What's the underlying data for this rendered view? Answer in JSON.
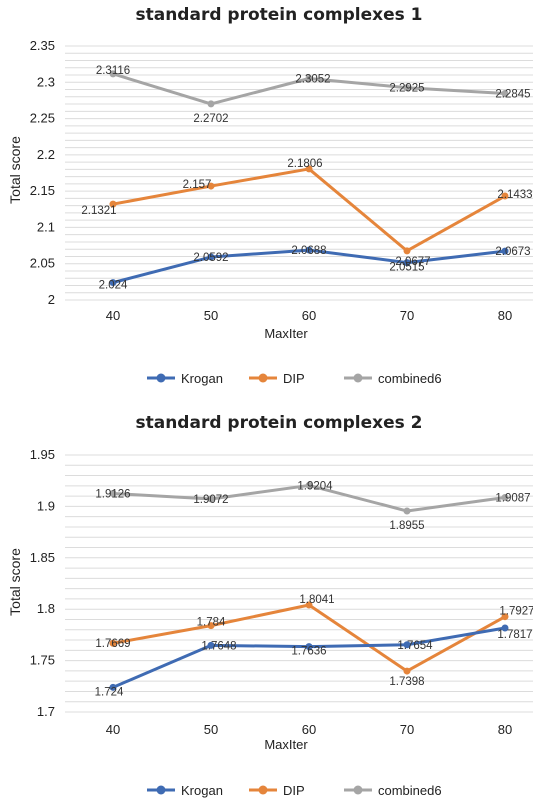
{
  "legend": {
    "entries": [
      "Krogan",
      "DIP",
      "combined6"
    ]
  },
  "colors": {
    "Krogan": "#3f6bb3",
    "DIP": "#e5853b",
    "combined6": "#a5a5a5"
  },
  "chart_data": [
    {
      "type": "line",
      "title": "standard  protein complexes 1",
      "xlabel": "MaxIter",
      "ylabel": "Total score",
      "categories": [
        "40",
        "50",
        "60",
        "70",
        "80"
      ],
      "ylim": [
        2,
        2.35
      ],
      "yticks": [
        "2",
        "2.05",
        "2.1",
        "2.15",
        "2.2",
        "2.25",
        "2.3",
        "2.35"
      ],
      "grid": true,
      "legend_position": "bottom",
      "series": [
        {
          "name": "Krogan",
          "values": [
            2.024,
            2.0592,
            2.0688,
            2.0515,
            2.0673
          ],
          "labels": [
            "2.024",
            "2.0592",
            "2.0688",
            "2.0515",
            "2.0673"
          ]
        },
        {
          "name": "DIP",
          "values": [
            2.1321,
            2.157,
            2.1806,
            2.0677,
            2.1433
          ],
          "labels": [
            "2.1321",
            "2.157",
            "2.1806",
            "2.0677",
            "2.1433"
          ]
        },
        {
          "name": "combined6",
          "values": [
            2.3116,
            2.2702,
            2.3052,
            2.2925,
            2.2845
          ],
          "labels": [
            "2.3116",
            "2.2702",
            "2.3052",
            "2.2925",
            "2.2845"
          ]
        }
      ]
    },
    {
      "type": "line",
      "title": "standard  protein complexes 2",
      "xlabel": "MaxIter",
      "ylabel": "Total score",
      "categories": [
        "40",
        "50",
        "60",
        "70",
        "80"
      ],
      "ylim": [
        1.7,
        1.95
      ],
      "yticks": [
        "1.7",
        "1.75",
        "1.8",
        "1.85",
        "1.9",
        "1.95"
      ],
      "grid": true,
      "legend_position": "bottom",
      "series": [
        {
          "name": "Krogan",
          "values": [
            1.724,
            1.7648,
            1.7636,
            1.7654,
            1.7817
          ],
          "labels": [
            "1.724",
            "1.7648",
            "1.7636",
            "1.7654",
            "1.7817"
          ]
        },
        {
          "name": "DIP",
          "values": [
            1.7669,
            1.784,
            1.8041,
            1.7398,
            1.7927
          ],
          "labels": [
            "1.7669",
            "1.784",
            "1.8041",
            "1.7398",
            "1.7927"
          ]
        },
        {
          "name": "combined6",
          "values": [
            1.9126,
            1.9072,
            1.9204,
            1.8955,
            1.9087
          ],
          "labels": [
            "1.9126",
            "1.9072",
            "1.9204",
            "1.8955",
            "1.9087"
          ]
        }
      ]
    }
  ]
}
